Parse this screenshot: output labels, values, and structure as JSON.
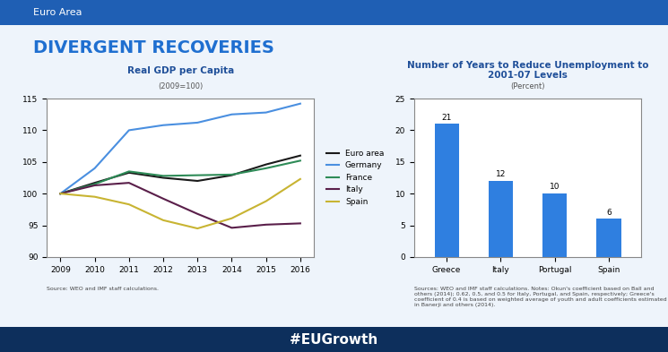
{
  "header": "Euro Area",
  "title": "DIVERGENT RECOVERIES",
  "banner": "#EUGrowth",
  "chart_data": [
    {
      "type": "line",
      "title": "Real GDP per Capita",
      "subtitle": "(2009=100)",
      "note": "Source: WEO and IMF staff calculations.",
      "x": [
        2009,
        2010,
        2011,
        2012,
        2013,
        2014,
        2015,
        2016
      ],
      "xlim": [
        2008.6,
        2016.4
      ],
      "xticks": [
        2009,
        2010,
        2011,
        2012,
        2013,
        2014,
        2015,
        2016
      ],
      "ylim": [
        90,
        115
      ],
      "yticks": [
        90,
        95,
        100,
        105,
        110,
        115
      ],
      "legend": "right",
      "grid": false,
      "series": [
        {
          "name": "Euro area",
          "color": "#1a1a1a",
          "values": [
            100,
            101.7,
            103.3,
            102.5,
            102.0,
            102.9,
            104.6,
            106.0
          ]
        },
        {
          "name": "Germany",
          "color": "#4a8fe0",
          "values": [
            100,
            104.0,
            110.0,
            110.8,
            111.2,
            112.5,
            112.8,
            114.2
          ]
        },
        {
          "name": "France",
          "color": "#2e8b57",
          "values": [
            100,
            101.5,
            103.5,
            102.8,
            102.9,
            103.0,
            104.0,
            105.2
          ]
        },
        {
          "name": "Italy",
          "color": "#5a1f4a",
          "values": [
            100,
            101.3,
            101.7,
            99.2,
            96.8,
            94.6,
            95.1,
            95.3
          ]
        },
        {
          "name": "Spain",
          "color": "#c8b432",
          "values": [
            100,
            99.5,
            98.3,
            95.8,
            94.5,
            96.1,
            98.8,
            102.3
          ]
        }
      ]
    },
    {
      "type": "bar",
      "title": "Number of Years to Reduce Unemployment to 2001-07 Levels",
      "subtitle": "(Percent)",
      "note": "Sources: WEO and IMF staff calculations. Notes: Okun's coefficient based on Ball and others (2014); 0.62, 0.5, and 0.5 for Italy, Portugal, and Spain, respectively; Greece's coefficient of 0.4 is based on weighted average of youth and adult coefficients estimated in Banerji and others (2014).",
      "categories": [
        "Greece",
        "Italy",
        "Portugal",
        "Spain"
      ],
      "values": [
        21,
        12,
        10,
        6
      ],
      "color": "#2f7fe0",
      "data_labels": true,
      "ylim": [
        0,
        25
      ],
      "yticks": [
        0,
        5,
        10,
        15,
        20,
        25
      ],
      "grid": false
    }
  ]
}
